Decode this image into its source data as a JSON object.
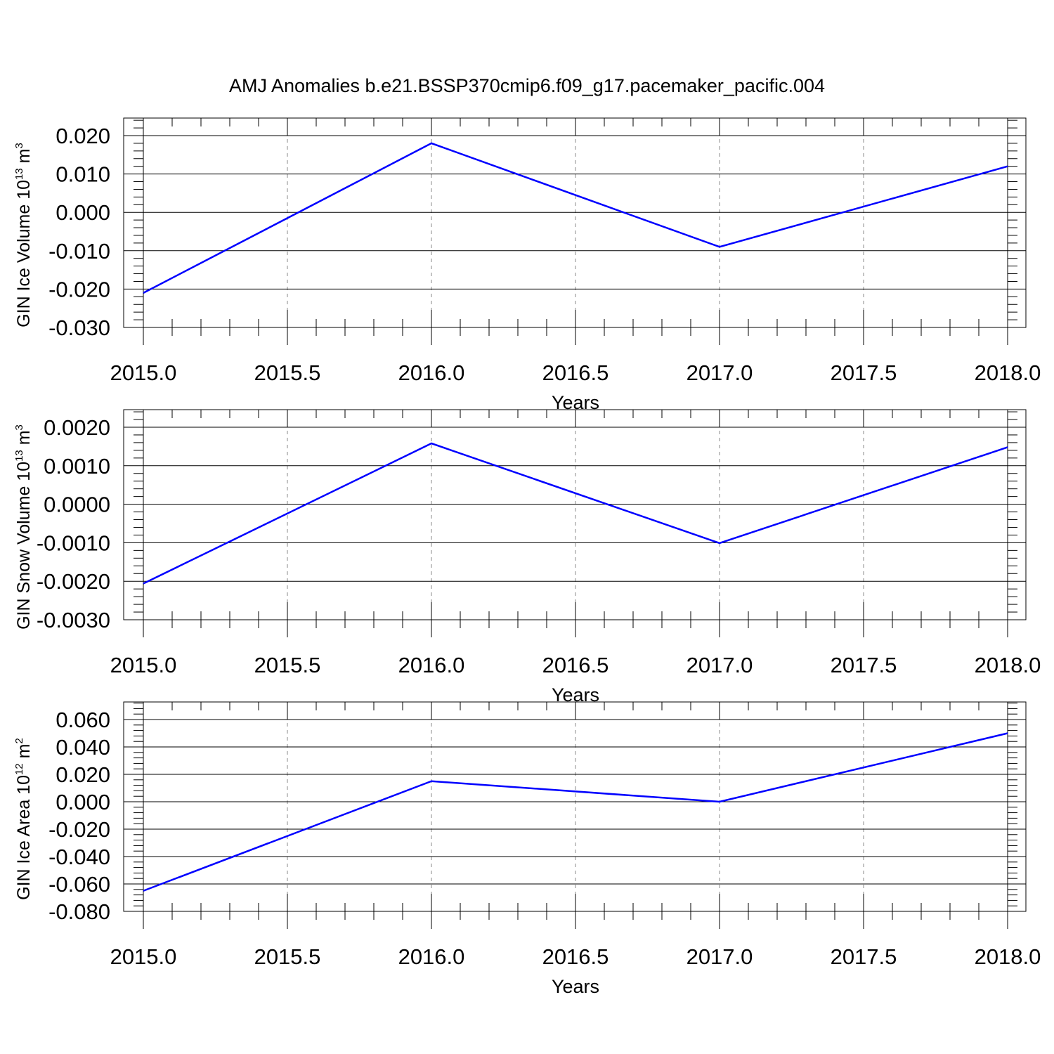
{
  "title": "AMJ Anomalies b.e21.BSSP370cmip6.f09_g17.pacemaker_pacific.004",
  "line_color": "#0000ff",
  "chart_data": [
    {
      "type": "line",
      "ylabel": "GIN Ice Volume 10",
      "ylabel_exp": "13",
      "ylabel_unit": " m",
      "ylabel_unit_exp": "3",
      "xlabel": "Years",
      "x": [
        2015,
        2016,
        2017,
        2018
      ],
      "series": [
        {
          "values": [
            -0.021,
            0.018,
            -0.009,
            0.012
          ]
        }
      ],
      "xlim": [
        2015,
        2018
      ],
      "ylim": [
        -0.03,
        0.02
      ],
      "xticks": [
        "2015.0",
        "2015.5",
        "2016.0",
        "2016.5",
        "2017.0",
        "2017.5",
        "2018.0"
      ],
      "yticks": [
        "-0.030",
        "-0.020",
        "-0.010",
        "0.000",
        "0.010",
        "0.020"
      ],
      "grid": "vertical-dashed"
    },
    {
      "type": "line",
      "ylabel": "GIN Snow Volume 10",
      "ylabel_exp": "13",
      "ylabel_unit": " m",
      "ylabel_unit_exp": "3",
      "xlabel": "Years",
      "x": [
        2015,
        2016,
        2017,
        2018
      ],
      "series": [
        {
          "values": [
            -0.00206,
            0.00158,
            -0.00101,
            0.00148
          ]
        }
      ],
      "xlim": [
        2015,
        2018
      ],
      "ylim": [
        -0.003,
        0.002
      ],
      "xticks": [
        "2015.0",
        "2015.5",
        "2016.0",
        "2016.5",
        "2017.0",
        "2017.5",
        "2018.0"
      ],
      "yticks": [
        "-0.0030",
        "-0.0020",
        "-0.0010",
        "0.0000",
        "0.0010",
        "0.0020"
      ],
      "grid": "vertical-dashed"
    },
    {
      "type": "line",
      "ylabel": "GIN Ice Area 10",
      "ylabel_exp": "12",
      "ylabel_unit": " m",
      "ylabel_unit_exp": "2",
      "xlabel": "Years",
      "x": [
        2015,
        2016,
        2017,
        2018
      ],
      "series": [
        {
          "values": [
            -0.065,
            0.015,
            0.0,
            0.05
          ]
        }
      ],
      "xlim": [
        2015,
        2018
      ],
      "ylim": [
        -0.08,
        0.06
      ],
      "xticks": [
        "2015.0",
        "2015.5",
        "2016.0",
        "2016.5",
        "2017.0",
        "2017.5",
        "2018.0"
      ],
      "yticks": [
        "-0.080",
        "-0.060",
        "-0.040",
        "-0.020",
        "0.000",
        "0.020",
        "0.040",
        "0.060"
      ],
      "grid": "vertical-dashed"
    }
  ]
}
